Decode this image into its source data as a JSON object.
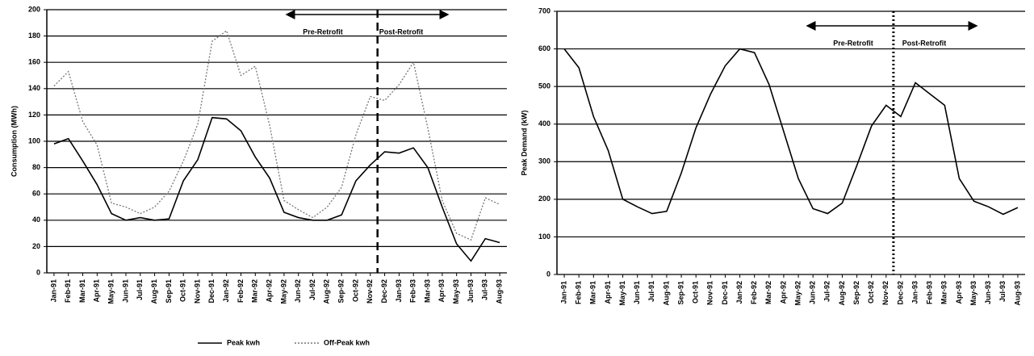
{
  "chart_data": [
    {
      "type": "line",
      "y_label": "Consumption (MWh)",
      "annotations": [
        "Pre-Retrofit",
        "Post-Retrofit"
      ],
      "categories": [
        "Jan-91",
        "Feb-91",
        "Mar-91",
        "Apr-91",
        "May-91",
        "Jun-91",
        "Jul-91",
        "Aug-91",
        "Sep-91",
        "Oct-91",
        "Nov-91",
        "Dec-91",
        "Jan-92",
        "Feb-92",
        "Mar-92",
        "Apr-92",
        "May-92",
        "Jun-92",
        "Jul-92",
        "Aug-92",
        "Sep-92",
        "Oct-92",
        "Nov-92",
        "Dec-92",
        "Jan-93",
        "Feb-93",
        "Mar-93",
        "Apr-93",
        "May-93",
        "Jun-93",
        "Jul-93",
        "Aug-93"
      ],
      "series": [
        {
          "name": "Peak kwh",
          "color": "#000000",
          "values": [
            98,
            102,
            85,
            67,
            45,
            40,
            42,
            40,
            41,
            70,
            86,
            118,
            117,
            108,
            88,
            72,
            46,
            42,
            40,
            40,
            44,
            70,
            82,
            92,
            91,
            95,
            80,
            50,
            22,
            9,
            26,
            23
          ]
        },
        {
          "name": "Off-Peak kwh",
          "color": "#777777",
          "values": [
            142,
            153,
            115,
            97,
            53,
            50,
            45,
            50,
            62,
            85,
            113,
            176,
            184,
            150,
            157,
            112,
            55,
            48,
            42,
            50,
            65,
            105,
            134,
            131,
            143,
            160,
            110,
            55,
            30,
            25,
            57,
            52
          ]
        }
      ],
      "ylim": [
        0,
        200
      ],
      "yticks": [
        0,
        20,
        40,
        60,
        80,
        100,
        120,
        140,
        160,
        180,
        200
      ],
      "grid": true,
      "legend": "bottom"
    },
    {
      "type": "line",
      "y_label": "Peak Demand (kW)",
      "annotations": [
        "Pre-Retrofit",
        "Post-Retrofit"
      ],
      "categories": [
        "Jan-91",
        "Feb-91",
        "Mar-91",
        "Apr-91",
        "May-91",
        "Jun-91",
        "Jul-91",
        "Aug-91",
        "Sep-91",
        "Oct-91",
        "Nov-91",
        "Dec-91",
        "Jan-92",
        "Feb-92",
        "Mar-92",
        "Apr-92",
        "May-92",
        "Jun-92",
        "Jul-92",
        "Aug-92",
        "Sep-92",
        "Oct-92",
        "Nov-92",
        "Dec-92",
        "Jan-93",
        "Feb-93",
        "Mar-93",
        "Apr-93",
        "May-93",
        "Jun-93",
        "Jul-93",
        "Aug-93"
      ],
      "series": [
        {
          "color": "#000000",
          "values": [
            600,
            550,
            420,
            330,
            200,
            180,
            162,
            168,
            270,
            390,
            480,
            555,
            600,
            590,
            505,
            380,
            255,
            175,
            162,
            190,
            290,
            395,
            450,
            420,
            510,
            480,
            450,
            255,
            195,
            180,
            160,
            178
          ]
        }
      ],
      "ylim": [
        0,
        700
      ],
      "yticks": [
        0,
        100,
        200,
        300,
        400,
        500,
        600,
        700
      ],
      "grid": true
    }
  ]
}
